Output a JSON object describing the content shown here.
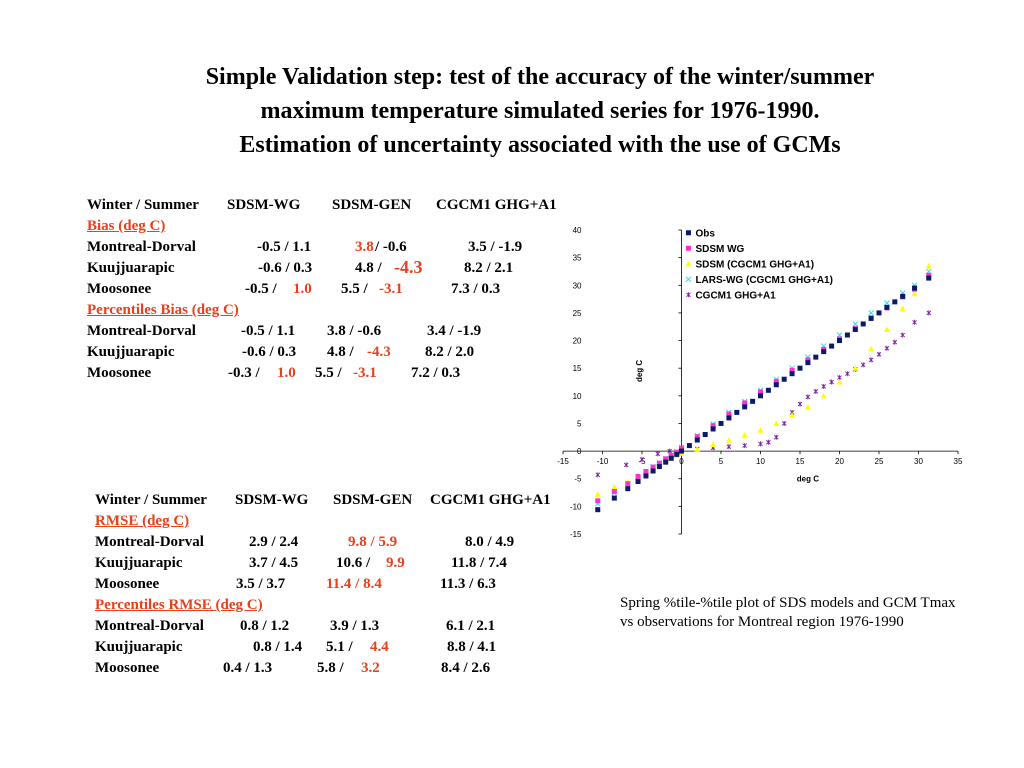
{
  "title": {
    "line1": "Simple Validation step:  test of the accuracy of the  winter/summer",
    "line2": "maximum temperature simulated series for 1976-1990.",
    "line3": "Estimation of uncertainty associated with the use of GCMs"
  },
  "bias_table": {
    "header": {
      "label": "Winter / Summer",
      "c1": "SDSM-WG",
      "c2": "SDSM-GEN",
      "c3": "CGCM1 GHG+A1"
    },
    "section1": "Bias (deg C)",
    "rows1": [
      {
        "name": "Montreal-Dorval",
        "a": "-0.5 /   1.1",
        "b1": "3.8",
        "b2": " /  -0.6",
        "c": "3.5 /  -1.9"
      },
      {
        "name": "Kuujjuarapic",
        "a": "-0.6 /   0.3",
        "b1": "4.8 /",
        "b2": "-4.3",
        "c": "8.2 /   2.1"
      },
      {
        "name": "Moosonee",
        "a": "-0.5 /",
        "a2": "1.0",
        "b1": "5.5 /",
        "b2": "-3.1",
        "c": "7.3 /   0.3"
      }
    ],
    "section2": "Percentiles Bias (deg C)",
    "rows2": [
      {
        "name": "Montreal-Dorval",
        "a": "-0.5 /   1.1",
        "b1": "3.8 /  -0.6",
        "c": "3.4 /  -1.9"
      },
      {
        "name": "Kuujjuarapic",
        "a": "-0.6 /   0.3",
        "b1": "4.8 /",
        "b2": "-4.3",
        "c": "8.2 /   2.0"
      },
      {
        "name": "Moosonee",
        "a": "-0.3 /",
        "a2": "1.0",
        "b1": "5.5 /",
        "b2": "-3.1",
        "c": "7.2 /   0.3"
      }
    ]
  },
  "rmse_table": {
    "header": {
      "label": "Winter / Summer",
      "c1": "SDSM-WG",
      "c2": "SDSM-GEN",
      "c3": "CGCM1 GHG+A1"
    },
    "section1": "RMSE (deg C)",
    "rows1": [
      {
        "name": "Montreal-Dorval",
        "a": "2.9 /   2.4",
        "b1": "9.8 /   5.9",
        "c": "8.0 /   4.9"
      },
      {
        "name": "Kuujjuarapic",
        "a": "3.7 /   4.5",
        "b1": "10.6 /",
        "b2": "9.9",
        "c": "11.8 /   7.4"
      },
      {
        "name": "Moosonee",
        "a": "3.5 /   3.7",
        "b1": "11.4 /   8.4",
        "c": "11.3 /   6.3"
      }
    ],
    "section2": "Percentiles RMSE (deg C)",
    "rows2": [
      {
        "name": "Montreal-Dorval",
        "a": "0.8 /   1.2",
        "b1": "3.9 /   1.3",
        "c": "6.1 /   2.1"
      },
      {
        "name": "Kuujjuarapic",
        "a": "0.8 /   1.4",
        "b1": "5.1 /",
        "b2": "4.4",
        "c": "8.8 /   4.1"
      },
      {
        "name": "Moosonee",
        "a": "0.4 /   1.3",
        "b1": "5.8 /",
        "b2": "3.2",
        "c": "8.4 /   2.6"
      }
    ]
  },
  "caption": {
    "line1": "Spring %tile-%tile plot of SDS models and GCM Tmax",
    "line2": "vs observations for Montreal region 1976-1990"
  },
  "colors": {
    "accent_red": "#e8401c",
    "obs": "#0a1a6b",
    "sdsm_wg": "#ff2fd0",
    "sdsm_cgcm": "#ffff00",
    "lars_wg": "#33ddee",
    "cgcm1": "#7a1fa0"
  },
  "chart_data": {
    "type": "scatter",
    "xlabel": "deg C",
    "ylabel": "deg C",
    "xlim": [
      -15,
      35
    ],
    "ylim": [
      -15,
      40
    ],
    "xticks": [
      -15,
      -10,
      -5,
      0,
      5,
      10,
      15,
      20,
      25,
      30,
      35
    ],
    "yticks": [
      -15,
      -10,
      -5,
      0,
      5,
      10,
      15,
      20,
      25,
      30,
      35,
      40
    ],
    "legend_position": "top-left",
    "series": [
      {
        "name": "Obs",
        "color": "#0a1a6b",
        "marker": "square",
        "points": [
          [
            -10.6,
            -10.6
          ],
          [
            -8.5,
            -8.5
          ],
          [
            -6.8,
            -6.8
          ],
          [
            -5.5,
            -5.5
          ],
          [
            -4.5,
            -4.5
          ],
          [
            -3.6,
            -3.6
          ],
          [
            -2.8,
            -2.8
          ],
          [
            -2.0,
            -2.0
          ],
          [
            -1.3,
            -1.3
          ],
          [
            -0.6,
            -0.6
          ],
          [
            0,
            0
          ],
          [
            1,
            1
          ],
          [
            2,
            2
          ],
          [
            3,
            3
          ],
          [
            4,
            4
          ],
          [
            5,
            5
          ],
          [
            6,
            6
          ],
          [
            7,
            7
          ],
          [
            8,
            8
          ],
          [
            9,
            9
          ],
          [
            10,
            10
          ],
          [
            11,
            11
          ],
          [
            12,
            12
          ],
          [
            13,
            13
          ],
          [
            14,
            14
          ],
          [
            15,
            15
          ],
          [
            16,
            16
          ],
          [
            17,
            17
          ],
          [
            18,
            18
          ],
          [
            19,
            19
          ],
          [
            20,
            20
          ],
          [
            21,
            21
          ],
          [
            22,
            22
          ],
          [
            23,
            23
          ],
          [
            24,
            24
          ],
          [
            25,
            25
          ],
          [
            26,
            26
          ],
          [
            27,
            27
          ],
          [
            28,
            28
          ],
          [
            29.5,
            29.5
          ],
          [
            31.3,
            31.3
          ]
        ]
      },
      {
        "name": "SDSM WG",
        "color": "#ff2fd0",
        "marker": "square",
        "points": [
          [
            -10.6,
            -9.0
          ],
          [
            -8.5,
            -7.3
          ],
          [
            -6.8,
            -5.9
          ],
          [
            -5.5,
            -4.6
          ],
          [
            -4.5,
            -3.7
          ],
          [
            -3.6,
            -2.9
          ],
          [
            -2.8,
            -2.2
          ],
          [
            -2.0,
            -1.4
          ],
          [
            -1.3,
            -0.8
          ],
          [
            -0.6,
            -0.2
          ],
          [
            0,
            0.5
          ],
          [
            2,
            2.6
          ],
          [
            4,
            4.6
          ],
          [
            6,
            6.7
          ],
          [
            8,
            8.7
          ],
          [
            10,
            10.7
          ],
          [
            12,
            12.6
          ],
          [
            14,
            14.6
          ],
          [
            16,
            16.5
          ],
          [
            18,
            18.4
          ],
          [
            20,
            20.3
          ],
          [
            22,
            22.2
          ],
          [
            24,
            24.1
          ],
          [
            26,
            25.9
          ],
          [
            28,
            27.9
          ],
          [
            29.5,
            29.3
          ],
          [
            31.3,
            31.8
          ]
        ]
      },
      {
        "name": "SDSM (CGCM1 GHG+A1)",
        "color": "#ffff00",
        "marker": "triangle",
        "points": [
          [
            -10.6,
            -7.8
          ],
          [
            -8.5,
            -6.5
          ],
          [
            -6.8,
            -5.5
          ],
          [
            -5.5,
            -4.6
          ],
          [
            -4.5,
            -3.8
          ],
          [
            -3.6,
            -3.1
          ],
          [
            -2.8,
            -2.4
          ],
          [
            -2.0,
            -1.8
          ],
          [
            -1.3,
            -1.3
          ],
          [
            -0.6,
            -0.8
          ],
          [
            0,
            -0.4
          ],
          [
            2,
            0.4
          ],
          [
            4,
            1.2
          ],
          [
            6,
            2.0
          ],
          [
            8,
            2.9
          ],
          [
            10,
            3.8
          ],
          [
            12,
            5.0
          ],
          [
            14,
            6.5
          ],
          [
            16,
            8.0
          ],
          [
            18,
            10.0
          ],
          [
            20,
            12.5
          ],
          [
            22,
            15.0
          ],
          [
            24,
            18.5
          ],
          [
            26,
            22.0
          ],
          [
            28,
            25.8
          ],
          [
            29.5,
            28.5
          ],
          [
            31.3,
            33.5
          ]
        ]
      },
      {
        "name": "LARS-WG (CGCM1 GHG+A1)",
        "color": "#33ddee",
        "marker": "x",
        "points": [
          [
            -10.6,
            -9.5
          ],
          [
            -8.5,
            -7.6
          ],
          [
            -6.8,
            -5.9
          ],
          [
            -5.5,
            -4.7
          ],
          [
            -4.5,
            -3.7
          ],
          [
            -3.6,
            -2.8
          ],
          [
            -2.8,
            -2.1
          ],
          [
            -2.0,
            -1.4
          ],
          [
            -1.3,
            -0.7
          ],
          [
            -0.6,
            -0.1
          ],
          [
            0,
            0.7
          ],
          [
            2,
            2.8
          ],
          [
            4,
            4.9
          ],
          [
            6,
            7.0
          ],
          [
            8,
            9.0
          ],
          [
            10,
            11.0
          ],
          [
            12,
            13.0
          ],
          [
            14,
            15.0
          ],
          [
            16,
            17.0
          ],
          [
            18,
            19.0
          ],
          [
            20,
            21.0
          ],
          [
            22,
            23.0
          ],
          [
            24,
            25.0
          ],
          [
            26,
            26.8
          ],
          [
            28,
            28.6
          ],
          [
            29.5,
            30.0
          ],
          [
            31.3,
            32.5
          ]
        ]
      },
      {
        "name": "CGCM1 GHG+A1",
        "color": "#7a1fa0",
        "marker": "star",
        "points": [
          [
            -10.6,
            -4.3
          ],
          [
            -7.0,
            -2.5
          ],
          [
            -5.0,
            -1.5
          ],
          [
            -3.0,
            -0.5
          ],
          [
            -1.5,
            0.0
          ],
          [
            0,
            0.2
          ],
          [
            2,
            0.4
          ],
          [
            4,
            0.6
          ],
          [
            6,
            0.8
          ],
          [
            8,
            1.0
          ],
          [
            10,
            1.3
          ],
          [
            11,
            1.6
          ],
          [
            12,
            2.5
          ],
          [
            13,
            5.0
          ],
          [
            14,
            7.0
          ],
          [
            15,
            8.5
          ],
          [
            16,
            9.8
          ],
          [
            17,
            10.8
          ],
          [
            18,
            11.7
          ],
          [
            19,
            12.5
          ],
          [
            20,
            13.3
          ],
          [
            21,
            14.0
          ],
          [
            22,
            14.8
          ],
          [
            23,
            15.6
          ],
          [
            24,
            16.5
          ],
          [
            25,
            17.5
          ],
          [
            26,
            18.6
          ],
          [
            27,
            19.7
          ],
          [
            28,
            21.0
          ],
          [
            29.5,
            23.3
          ],
          [
            31.3,
            25.0
          ]
        ]
      }
    ]
  }
}
